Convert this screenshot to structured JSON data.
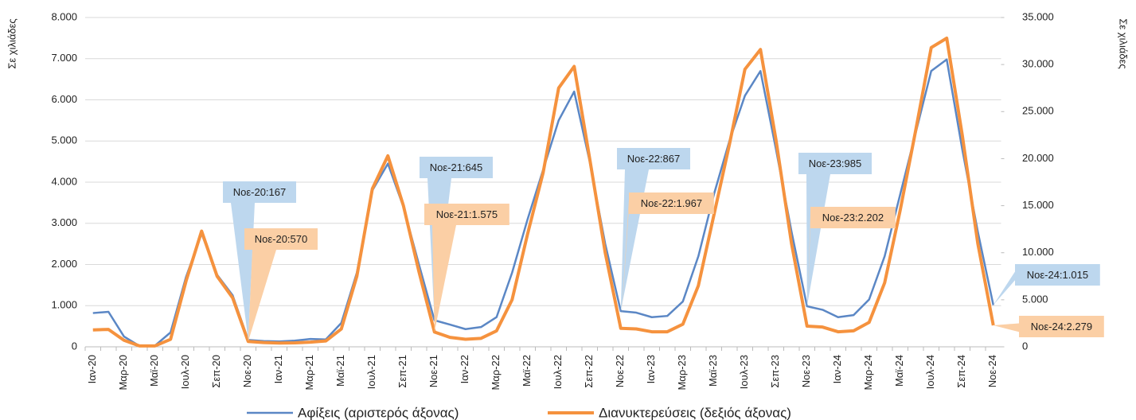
{
  "chart_data": {
    "type": "line",
    "y_axis_label": "Σε χιλιάδες",
    "y2_axis_label": "Σε χιλιάδες",
    "categories": [
      "Ιαν-20",
      null,
      "Μαρ-20",
      null,
      "Μαϊ-20",
      null,
      "Ιουλ-20",
      null,
      "Σεπ-20",
      null,
      "Νοε-20",
      null,
      "Ιαν-21",
      null,
      "Μαρ-21",
      null,
      "Μαϊ-21",
      null,
      "Ιουλ-21",
      null,
      "Σεπ-21",
      null,
      "Νοε-21",
      null,
      "Ιαν-22",
      null,
      "Μαρ-22",
      null,
      "Μαϊ-22",
      null,
      "Ιουλ-22",
      null,
      "Σεπ-22",
      null,
      "Νοε-22",
      null,
      "Ιαν-23",
      null,
      "Μαρ-23",
      null,
      "Μαϊ-23",
      null,
      "Ιουλ-23",
      null,
      "Σεπ-23",
      null,
      "Νοε-23",
      null,
      "Ιαν-24",
      null,
      "Μαρ-24",
      null,
      "Μαϊ-24",
      null,
      "Ιουλ-24",
      null,
      "Σεπ-24",
      null,
      "Νοε-24"
    ],
    "series": [
      {
        "name": "Αφίξεις (αριστερός άξονας)",
        "color": "#5b87c5",
        "label_color": "#bdd7ee",
        "values": [
          820,
          850,
          250,
          20,
          30,
          350,
          1700,
          2750,
          1750,
          1250,
          167,
          140,
          130,
          150,
          190,
          180,
          580,
          1800,
          3800,
          4450,
          3400,
          2000,
          645,
          540,
          430,
          480,
          720,
          1800,
          3100,
          4300,
          5500,
          6200,
          4500,
          2500,
          867,
          830,
          720,
          750,
          1100,
          2200,
          3700,
          5000,
          6100,
          6700,
          4800,
          2800,
          985,
          900,
          720,
          770,
          1150,
          2200,
          3700,
          5200,
          6700,
          6980,
          4800,
          2800,
          1015
        ],
        "value_labels": [
          null,
          null,
          null,
          null,
          null,
          null,
          null,
          null,
          null,
          null,
          "Νοε-20:167",
          null,
          null,
          null,
          null,
          null,
          null,
          null,
          null,
          null,
          null,
          null,
          "Νοε-21:645",
          null,
          null,
          null,
          null,
          null,
          null,
          null,
          null,
          null,
          null,
          null,
          "Νοε-22:867",
          null,
          null,
          null,
          null,
          null,
          null,
          null,
          null,
          null,
          null,
          null,
          "Νοε-23:985",
          null,
          null,
          null,
          null,
          null,
          null,
          null,
          null,
          null,
          null,
          null,
          "Νοε-24:1.015"
        ]
      },
      {
        "name": "Διανυκτερεύσεις (δεξιός άξονας)",
        "color": "#f5923e",
        "label_color": "#fbcfa5",
        "axis": "y2",
        "values": [
          1800,
          1850,
          700,
          100,
          100,
          800,
          7000,
          12300,
          7500,
          5200,
          570,
          450,
          400,
          420,
          500,
          620,
          1900,
          7500,
          16800,
          20300,
          15000,
          8000,
          1575,
          1000,
          800,
          900,
          1700,
          5000,
          12000,
          18500,
          27500,
          29800,
          20000,
          10000,
          1967,
          1900,
          1600,
          1600,
          2400,
          6500,
          14000,
          21500,
          29500,
          31600,
          22000,
          11000,
          2202,
          2100,
          1600,
          1700,
          2600,
          6800,
          14500,
          23000,
          31800,
          32800,
          22500,
          11000,
          2279
        ],
        "value_labels": [
          null,
          null,
          null,
          null,
          null,
          null,
          null,
          null,
          null,
          null,
          "Νοε-20:570",
          null,
          null,
          null,
          null,
          null,
          null,
          null,
          null,
          null,
          null,
          null,
          "Νοε-21:1.575",
          null,
          null,
          null,
          null,
          null,
          null,
          null,
          null,
          null,
          null,
          null,
          "Νοε-22:1.967",
          null,
          null,
          null,
          null,
          null,
          null,
          null,
          null,
          null,
          null,
          null,
          "Νοε-23:2.202",
          null,
          null,
          null,
          null,
          null,
          null,
          null,
          null,
          null,
          null,
          null,
          "Νοε-24:2.279"
        ]
      }
    ],
    "ylim": [
      0,
      8000
    ],
    "yticks": [
      0,
      {
        "value": 1000,
        "label": "1.000"
      },
      {
        "value": 2000,
        "label": "2.000"
      },
      {
        "value": 3000,
        "label": "3.000"
      },
      {
        "value": 4000,
        "label": "4.000"
      },
      {
        "value": 5000,
        "label": "5.000"
      },
      {
        "value": 6000,
        "label": "6.000"
      },
      {
        "value": 7000,
        "label": "7.000"
      },
      {
        "value": 8000,
        "label": "8.000"
      }
    ],
    "y2lim": [
      0,
      35000
    ],
    "y2ticks": [
      0,
      {
        "value": 5000,
        "label": "5.000"
      },
      {
        "value": 10000,
        "label": "10.000"
      },
      {
        "value": 15000,
        "label": "15.000"
      },
      {
        "value": 20000,
        "label": "20.000"
      },
      {
        "value": 25000,
        "label": "25.000"
      },
      {
        "value": 30000,
        "label": "30.000"
      },
      {
        "value": 35000,
        "label": "35.000"
      }
    ],
    "grid": true,
    "legend": "bottom"
  }
}
